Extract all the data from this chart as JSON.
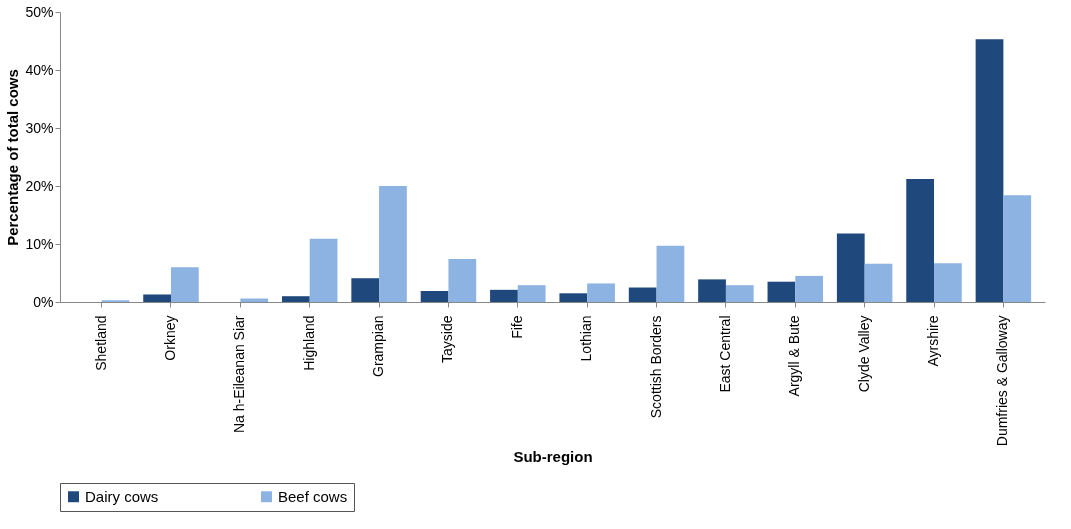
{
  "chart_data": {
    "type": "bar",
    "xlabel": "Sub-region",
    "ylabel": "Percentage of total cows",
    "categories": [
      "Shetland",
      "Orkney",
      "Na h-Eileanan Siar",
      "Highland",
      "Grampian",
      "Tayside",
      "Fife",
      "Lothian",
      "Scottish Borders",
      "East Central",
      "Argyll & Bute",
      "Clyde Valley",
      "Ayrshire",
      "Dumfries & Galloway"
    ],
    "series": [
      {
        "name": "Dairy cows",
        "color": "#1f497d",
        "values": [
          0,
          1.3,
          0,
          1.0,
          4.1,
          1.9,
          2.1,
          1.5,
          2.5,
          3.9,
          3.5,
          11.8,
          21.2,
          45.3
        ]
      },
      {
        "name": "Beef cows",
        "color": "#8db3e2",
        "values": [
          0.3,
          6.0,
          0.6,
          10.9,
          20.0,
          7.4,
          2.9,
          3.2,
          9.7,
          2.9,
          4.5,
          6.6,
          6.7,
          18.4
        ]
      }
    ],
    "ylim": [
      0,
      50
    ],
    "yticks": [
      {
        "value": 0,
        "label": "0%"
      },
      {
        "value": 10,
        "label": "10%"
      },
      {
        "value": 20,
        "label": "20%"
      },
      {
        "value": 30,
        "label": "30%"
      },
      {
        "value": 40,
        "label": "40%"
      },
      {
        "value": 50,
        "label": "50%"
      }
    ],
    "grid": false,
    "legend": "bottom"
  }
}
